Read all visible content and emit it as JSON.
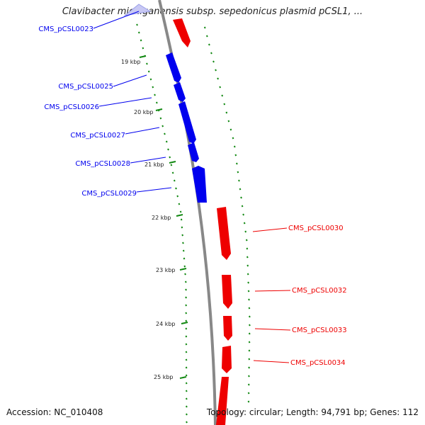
{
  "title": "Clavibacter michiganensis subsp. sepedonicus plasmid pCSL1, ...",
  "footer": {
    "accession": "Accession: NC_010408",
    "summary": "Topology: circular; Length: 94,791 bp; Genes: 112"
  },
  "colors": {
    "minus_strand": "#0000ee",
    "plus_strand": "#ee0000",
    "faded_gene": "#c8c8f4",
    "backbone": "#888888",
    "tick_marks": "#118811"
  },
  "kbp_ticks": [
    "19 kbp",
    "20 kbp",
    "21 kbp",
    "22 kbp",
    "23 kbp",
    "24 kbp",
    "25 kbp"
  ],
  "genes": {
    "minus": [
      {
        "label": "CMS_pCSL0023"
      },
      {
        "label": "CMS_pCSL0025"
      },
      {
        "label": "CMS_pCSL0026"
      },
      {
        "label": "CMS_pCSL0027"
      },
      {
        "label": "CMS_pCSL0028"
      },
      {
        "label": "CMS_pCSL0029"
      }
    ],
    "plus": [
      {
        "label": "CMS_pCSL0030"
      },
      {
        "label": "CMS_pCSL0032"
      },
      {
        "label": "CMS_pCSL0033"
      },
      {
        "label": "CMS_pCSL0034"
      }
    ]
  }
}
